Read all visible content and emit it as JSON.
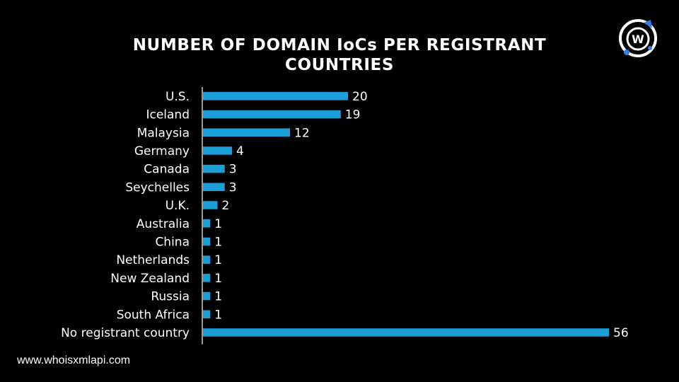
{
  "chart_data": {
    "type": "bar",
    "orientation": "horizontal",
    "title_lines": [
      "NUMBER OF DOMAIN IoCs PER REGISTRANT",
      "COUNTRIES"
    ],
    "categories": [
      "U.S.",
      "Iceland",
      "Malaysia",
      "Germany",
      "Canada",
      "Seychelles",
      "U.K.",
      "Australia",
      "China",
      "Netherlands",
      "New Zealand",
      "Russia",
      "South Africa",
      "No registrant country"
    ],
    "values": [
      20,
      19,
      12,
      4,
      3,
      3,
      2,
      1,
      1,
      1,
      1,
      1,
      1,
      56
    ],
    "xlim": [
      0,
      56
    ],
    "bar_color": "#1A9FD9",
    "data_labels": true,
    "grid": false
  },
  "brand": {
    "logo_icon": "whoisxml-logo-icon",
    "logo_letter": "W",
    "accent_color": "#2F7FE5",
    "website": "www.whoisxmlapi.com"
  }
}
